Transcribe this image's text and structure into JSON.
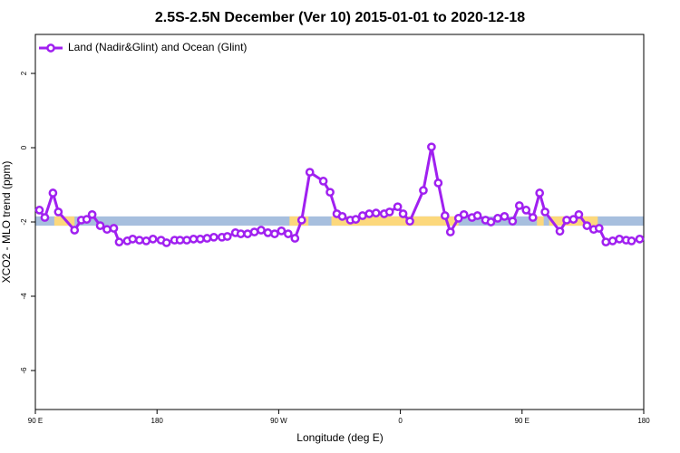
{
  "chart_data": {
    "type": "line",
    "title": "2.5S-2.5N December (Ver 10)   2015-01-01 to 2020-12-18",
    "xlabel": "Longitude (deg E)",
    "ylabel": "XCO2 - MLO trend (ppm)",
    "xlim": [
      90,
      540
    ],
    "ylim": [
      -7.05,
      3.05
    ],
    "xticks": [
      {
        "value": 90,
        "label": "90 E"
      },
      180,
      {
        "value": 270,
        "label": "90 W"
      },
      {
        "value": 360,
        "label": "0"
      },
      {
        "value": 450,
        "label": "90 E"
      },
      {
        "value": 540,
        "label": "180"
      }
    ],
    "yticks": [
      -6,
      -4,
      -2,
      0,
      2
    ],
    "legend": "top-left",
    "surface_band": {
      "ylim": [
        -2.1,
        -1.85
      ],
      "ocean_color": "#a7bfde",
      "land_color": "#fcd87c",
      "land_segments": [
        [
          104,
          119
        ],
        [
          278,
          292
        ],
        [
          309,
          403
        ],
        [
          461,
          466
        ],
        [
          470,
          506
        ]
      ]
    },
    "x": [
      93,
      97,
      103,
      107,
      119,
      124,
      128,
      132,
      138,
      143,
      148,
      152,
      158,
      162,
      167,
      172,
      177,
      183,
      187,
      193,
      197,
      202,
      207,
      212,
      217,
      222,
      228,
      232,
      238,
      242,
      247,
      252,
      257,
      262,
      267,
      272,
      277,
      282,
      287,
      293,
      303,
      308,
      313,
      317,
      323,
      327,
      332,
      337,
      342,
      348,
      352,
      358,
      362,
      367,
      377,
      383,
      388,
      393,
      397,
      403,
      407,
      413,
      417,
      423,
      427,
      432,
      437,
      443,
      448,
      453,
      458,
      463,
      467,
      478,
      483,
      488,
      492,
      498,
      503,
      507,
      512,
      517,
      522,
      527,
      531,
      537
    ],
    "series": [
      {
        "name": "Land (Nadir&Glint) and Ocean (Glint)",
        "color": "#a020f0",
        "values": [
          -1.68,
          -1.88,
          -1.22,
          -1.73,
          -2.22,
          -1.95,
          -1.93,
          -1.8,
          -2.1,
          -2.2,
          -2.17,
          -2.54,
          -2.51,
          -2.46,
          -2.49,
          -2.51,
          -2.46,
          -2.49,
          -2.56,
          -2.49,
          -2.49,
          -2.49,
          -2.46,
          -2.46,
          -2.44,
          -2.41,
          -2.41,
          -2.39,
          -2.29,
          -2.32,
          -2.32,
          -2.27,
          -2.22,
          -2.29,
          -2.32,
          -2.24,
          -2.32,
          -2.44,
          -1.95,
          -0.66,
          -0.9,
          -1.2,
          -1.78,
          -1.85,
          -1.95,
          -1.93,
          -1.83,
          -1.78,
          -1.76,
          -1.78,
          -1.73,
          -1.59,
          -1.78,
          -1.98,
          -1.15,
          0.02,
          -0.95,
          -1.83,
          -2.27,
          -1.9,
          -1.8,
          -1.88,
          -1.83,
          -1.95,
          -2.0,
          -1.9,
          -1.85,
          -1.98,
          -1.56,
          -1.68,
          -1.88,
          -1.22,
          -1.73,
          -2.25,
          -1.95,
          -1.93,
          -1.8,
          -2.1,
          -2.2,
          -2.17,
          -2.54,
          -2.51,
          -2.46,
          -2.49,
          -2.51,
          -2.46
        ]
      }
    ]
  }
}
